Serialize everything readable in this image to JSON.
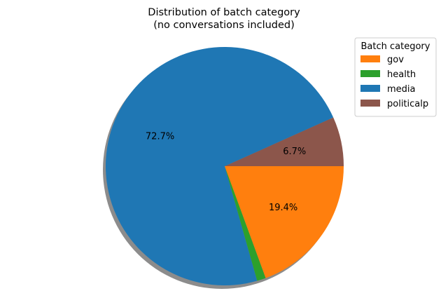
{
  "chart_data": {
    "type": "pie",
    "title_lines": [
      "Distribution of batch category",
      "(no conversations included)"
    ],
    "slices": [
      {
        "name": "politicalp",
        "value": 6.7,
        "color": "#8c564b",
        "label": "6.7%"
      },
      {
        "name": "media",
        "value": 72.7,
        "color": "#1f77b4",
        "label": "72.7%"
      },
      {
        "name": "health",
        "value": 1.2,
        "color": "#2ca02c",
        "label": ""
      },
      {
        "name": "gov",
        "value": 19.4,
        "color": "#ff7f0e",
        "label": "19.4%"
      }
    ],
    "legend": {
      "title": "Batch category",
      "placement": "top-right",
      "entries": [
        {
          "name": "gov",
          "color": "#ff7f0e"
        },
        {
          "name": "health",
          "color": "#2ca02c"
        },
        {
          "name": "media",
          "color": "#1f77b4"
        },
        {
          "name": "politicalp",
          "color": "#8c564b"
        }
      ]
    },
    "shadow": true,
    "start_angle_deg": 0,
    "direction": "counterclockwise"
  }
}
